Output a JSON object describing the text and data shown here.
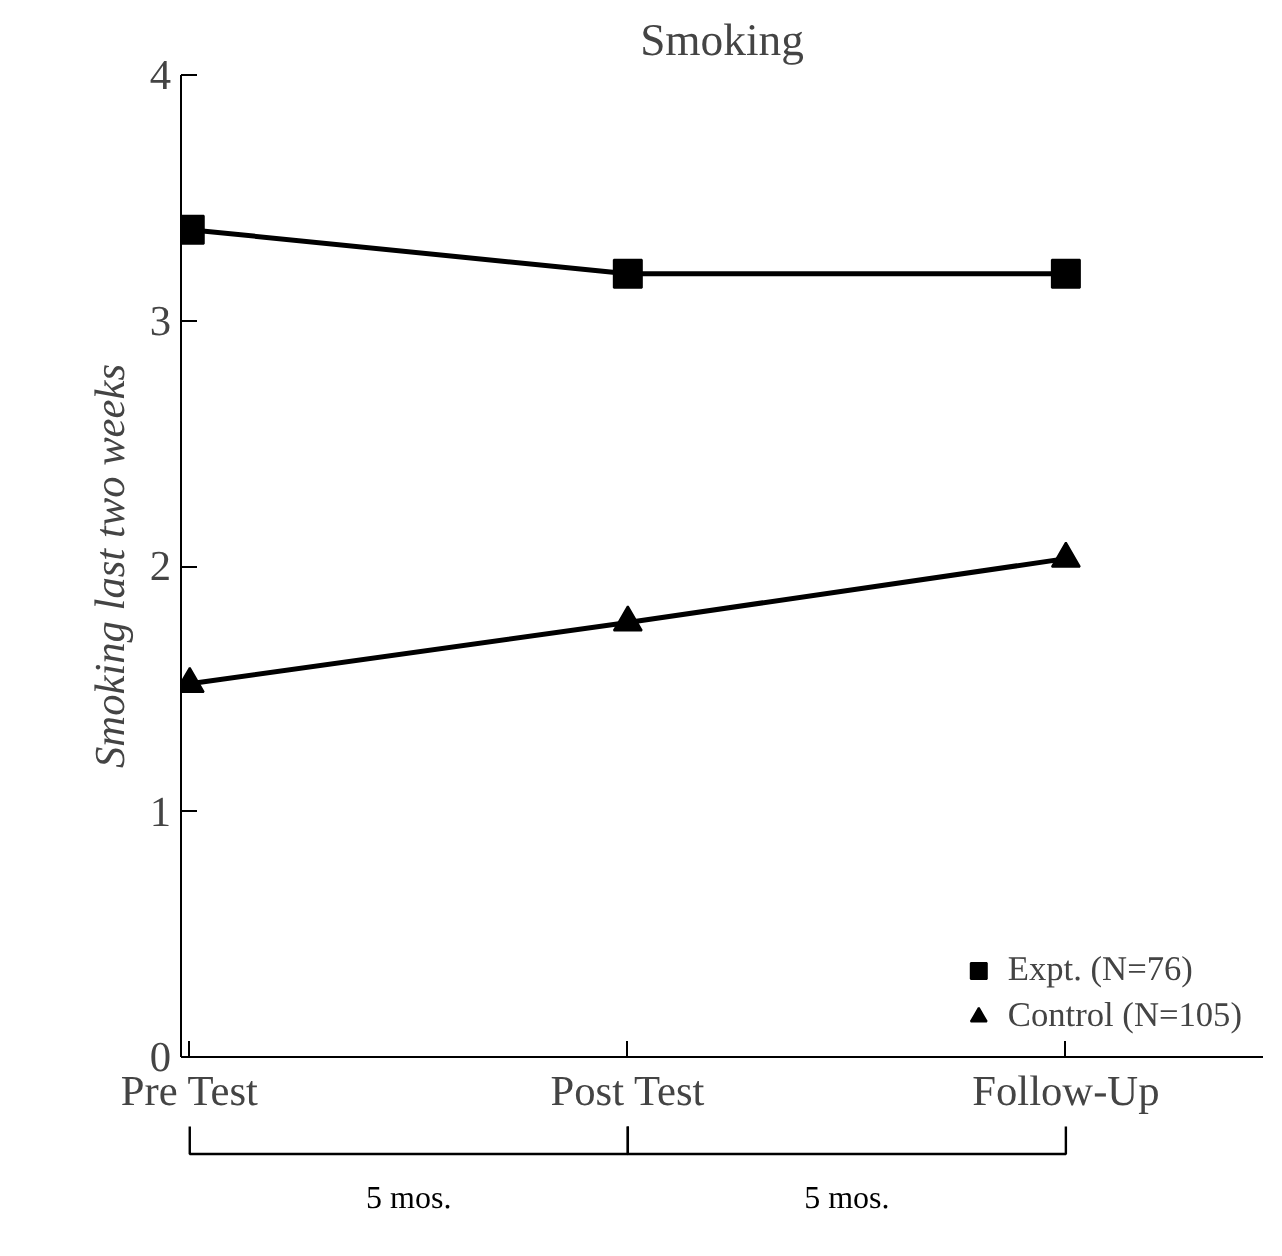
{
  "chart_data": {
    "type": "line",
    "title": "Smoking",
    "ylabel": "Smoking last two weeks",
    "categories": [
      "Pre Test",
      "Post Test",
      "Follow-Up"
    ],
    "series": [
      {
        "name": "Expt. (N=76)",
        "color": "#000000",
        "marker": "square",
        "values": [
          3.37,
          3.19,
          3.19
        ]
      },
      {
        "name": "Control (N=105)",
        "color": "#000000",
        "marker": "triangle",
        "values": [
          1.52,
          1.77,
          2.03
        ]
      }
    ],
    "ylim": [
      0,
      4
    ],
    "yticks": [
      0,
      1,
      2,
      3,
      4
    ],
    "grid": false,
    "legend": "bottom right",
    "line_style": "solid",
    "annotations": [
      "5 mos.",
      "5 mos."
    ]
  }
}
